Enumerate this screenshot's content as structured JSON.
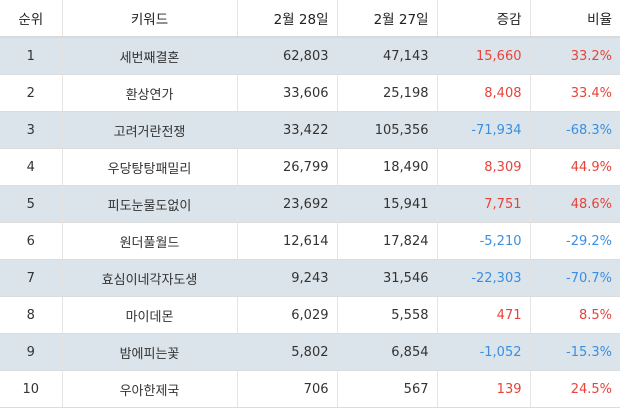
{
  "header": {
    "rank": "순위",
    "keyword": "키워드",
    "feb28": "2월 28일",
    "feb27": "2월 27일",
    "change": "증감",
    "ratio": "비율"
  },
  "colors": {
    "positive": "#e8433a",
    "negative": "#3a8fe0",
    "row_shade": "#dbe4ea"
  },
  "rows": [
    {
      "rank": "1",
      "keyword": "세번째결혼",
      "feb28": "62,803",
      "feb27": "47,143",
      "change": "15,660",
      "ratio": "33.2%",
      "trend": "pos"
    },
    {
      "rank": "2",
      "keyword": "환상연가",
      "feb28": "33,606",
      "feb27": "25,198",
      "change": "8,408",
      "ratio": "33.4%",
      "trend": "pos"
    },
    {
      "rank": "3",
      "keyword": "고려거란전쟁",
      "feb28": "33,422",
      "feb27": "105,356",
      "change": "-71,934",
      "ratio": "-68.3%",
      "trend": "neg"
    },
    {
      "rank": "4",
      "keyword": "우당탕탕패밀리",
      "feb28": "26,799",
      "feb27": "18,490",
      "change": "8,309",
      "ratio": "44.9%",
      "trend": "pos"
    },
    {
      "rank": "5",
      "keyword": "피도눈물도없이",
      "feb28": "23,692",
      "feb27": "15,941",
      "change": "7,751",
      "ratio": "48.6%",
      "trend": "pos"
    },
    {
      "rank": "6",
      "keyword": "원더풀월드",
      "feb28": "12,614",
      "feb27": "17,824",
      "change": "-5,210",
      "ratio": "-29.2%",
      "trend": "neg"
    },
    {
      "rank": "7",
      "keyword": "효심이네각자도생",
      "feb28": "9,243",
      "feb27": "31,546",
      "change": "-22,303",
      "ratio": "-70.7%",
      "trend": "neg"
    },
    {
      "rank": "8",
      "keyword": "마이데몬",
      "feb28": "6,029",
      "feb27": "5,558",
      "change": "471",
      "ratio": "8.5%",
      "trend": "pos"
    },
    {
      "rank": "9",
      "keyword": "밤에피는꽃",
      "feb28": "5,802",
      "feb27": "6,854",
      "change": "-1,052",
      "ratio": "-15.3%",
      "trend": "neg"
    },
    {
      "rank": "10",
      "keyword": "우아한제국",
      "feb28": "706",
      "feb27": "567",
      "change": "139",
      "ratio": "24.5%",
      "trend": "pos"
    }
  ]
}
